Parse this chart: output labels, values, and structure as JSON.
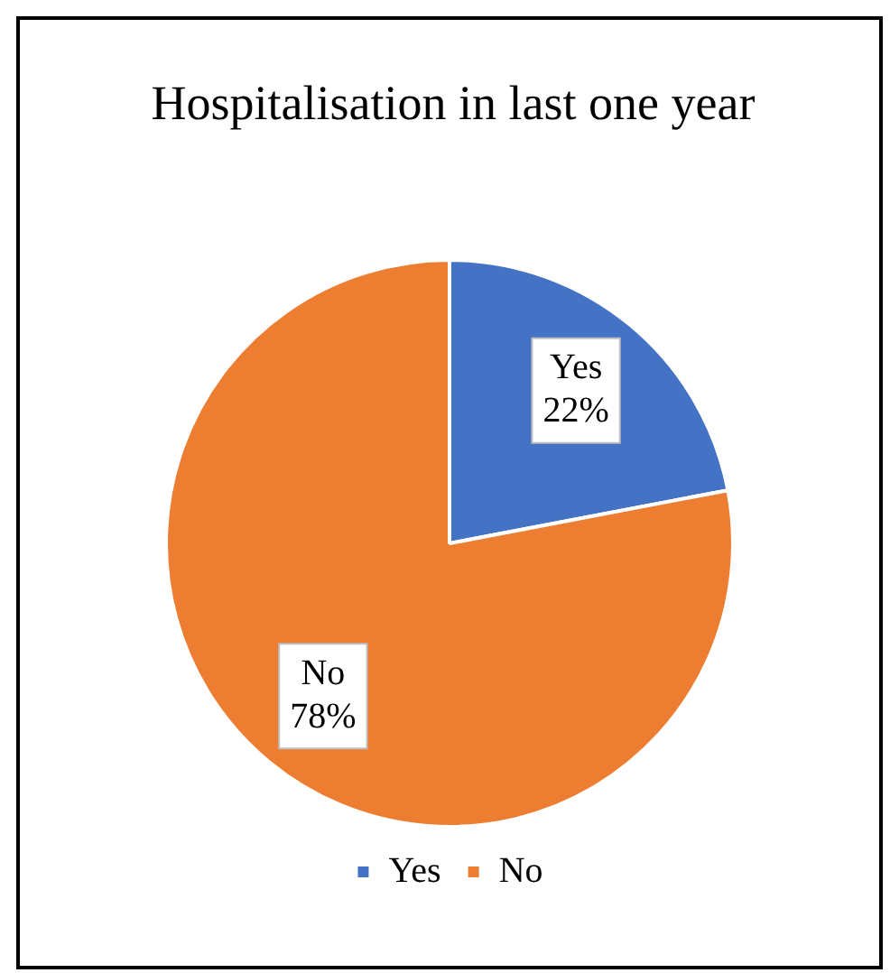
{
  "chart_data": {
    "type": "pie",
    "title": "Hospitalisation in last one year",
    "categories": [
      "Yes",
      "No"
    ],
    "values": [
      22,
      78
    ],
    "colors": [
      "#4472c4",
      "#ed7d31"
    ],
    "value_labels": [
      "22%",
      "78%"
    ],
    "legend": "bottom"
  }
}
